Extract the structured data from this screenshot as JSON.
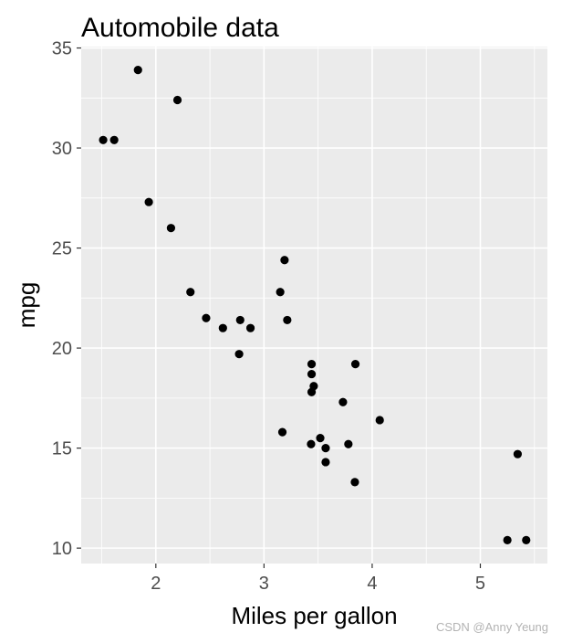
{
  "chart_data": {
    "type": "scatter",
    "title": "Automobile data",
    "xlabel": "Miles per gallon",
    "ylabel": "mpg",
    "xlim": [
      1.31,
      5.62
    ],
    "ylim": [
      9.23,
      35.07
    ],
    "xticks": [
      2,
      3,
      4,
      5
    ],
    "yticks": [
      10,
      15,
      20,
      25,
      30,
      35
    ],
    "grid": true,
    "legend": "none",
    "panel_background": "#ebebeb",
    "grid_color": "#ffffff",
    "point_color": "#000000",
    "x": [
      2.62,
      2.875,
      2.32,
      3.215,
      3.44,
      3.46,
      3.57,
      3.19,
      3.15,
      3.44,
      3.44,
      4.07,
      3.73,
      3.78,
      5.25,
      5.424,
      5.345,
      2.2,
      1.615,
      1.835,
      2.465,
      3.52,
      3.435,
      3.84,
      3.845,
      1.935,
      2.14,
      1.513,
      3.17,
      2.77,
      3.57,
      2.78
    ],
    "y": [
      21.0,
      21.0,
      22.8,
      21.4,
      18.7,
      18.1,
      14.3,
      24.4,
      22.8,
      19.2,
      17.8,
      16.4,
      17.3,
      15.2,
      10.4,
      10.4,
      14.7,
      32.4,
      30.4,
      33.9,
      21.5,
      15.5,
      15.2,
      13.3,
      19.2,
      27.3,
      26.0,
      30.4,
      15.8,
      19.7,
      15.0,
      21.4
    ]
  },
  "watermark": "CSDN @Anny Yeung"
}
